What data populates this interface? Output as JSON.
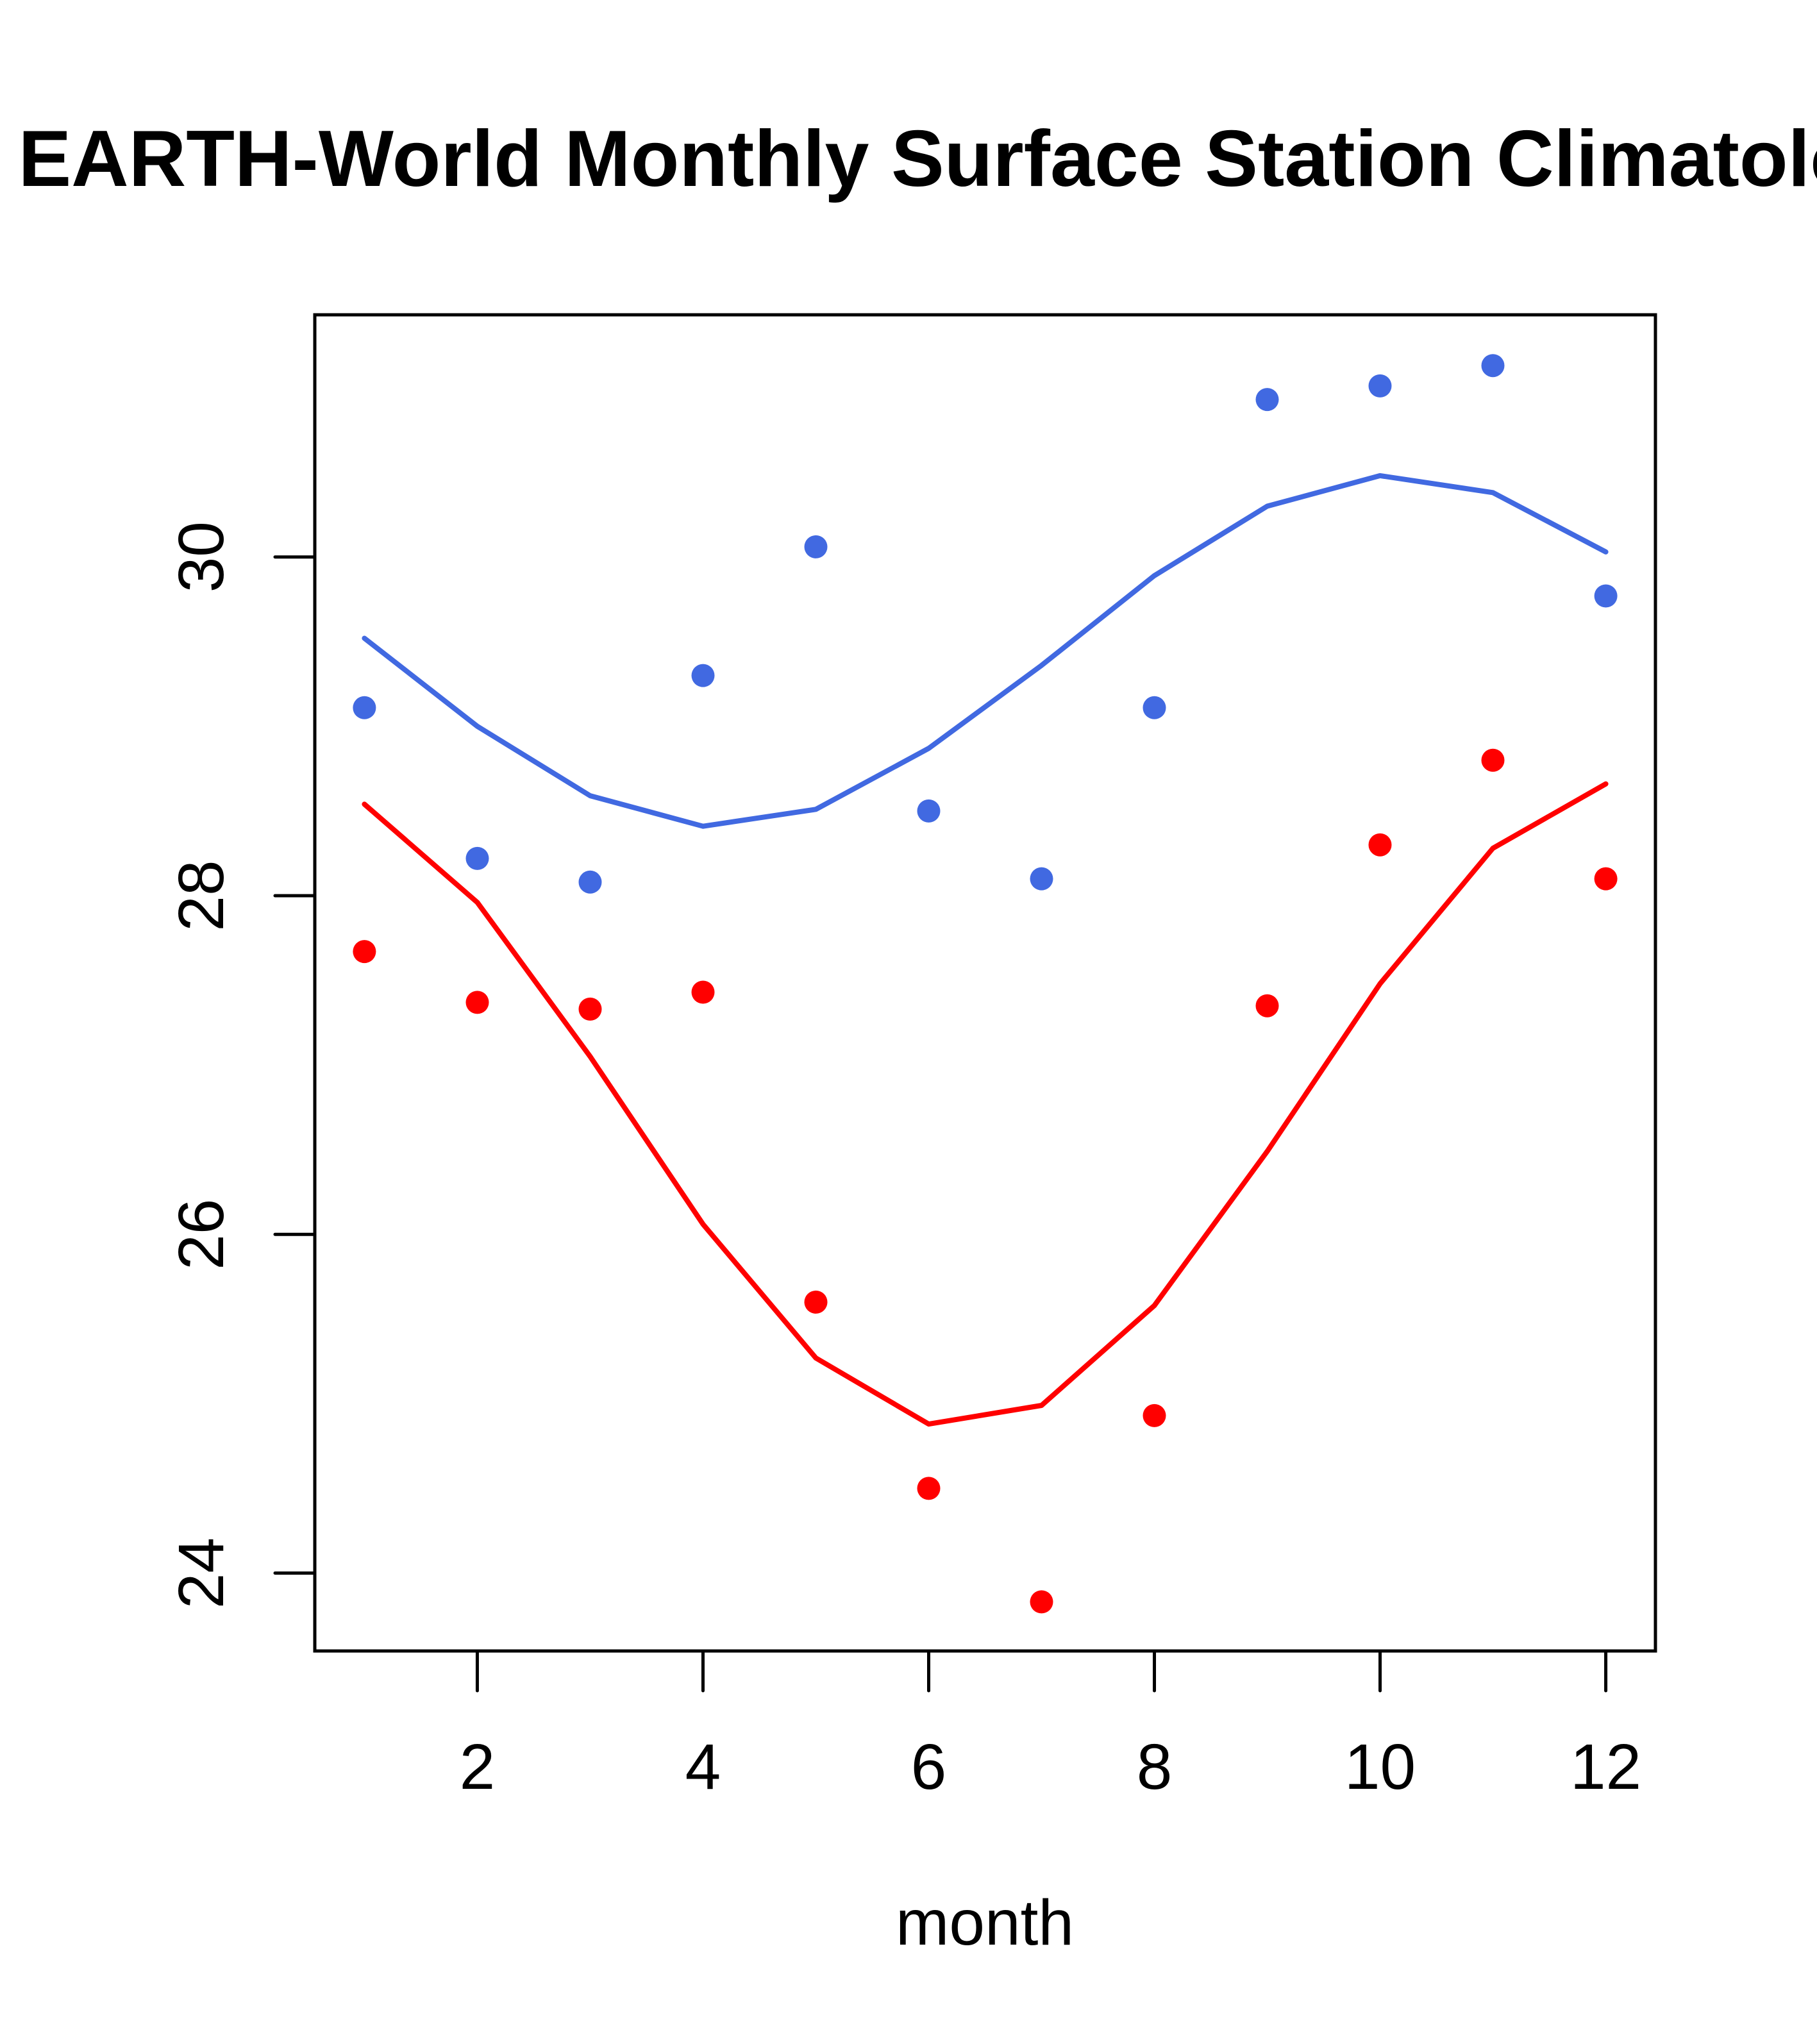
{
  "chart_data": {
    "type": "scatter",
    "title": "EARTH-World Monthly Surface Station Climatology",
    "xlabel": "month",
    "ylabel": "",
    "xlim": [
      0.56,
      12.44
    ],
    "ylim": [
      23.54,
      31.43
    ],
    "xticks": [
      2,
      4,
      6,
      8,
      10,
      12
    ],
    "xtick_labels": [
      "2",
      "4",
      "6",
      "8",
      "10",
      "12"
    ],
    "yticks": [
      24,
      26,
      28,
      30
    ],
    "ytick_labels": [
      "24",
      "26",
      "28",
      "30"
    ],
    "grid": false,
    "legend": null,
    "x": [
      1,
      2,
      3,
      4,
      5,
      6,
      7,
      8,
      9,
      10,
      11,
      12
    ],
    "series": [
      {
        "name": "blue-line",
        "kind": "line",
        "color": "#4169E1",
        "values": [
          29.52,
          29.0,
          28.59,
          28.41,
          28.51,
          28.87,
          29.36,
          29.89,
          30.3,
          30.48,
          30.38,
          30.03
        ]
      },
      {
        "name": "blue-points",
        "kind": "points",
        "color": "#4169E1",
        "values": [
          29.11,
          28.22,
          28.08,
          29.3,
          30.06,
          28.5,
          28.1,
          29.11,
          30.93,
          31.01,
          31.13,
          29.77
        ]
      },
      {
        "name": "red-line",
        "kind": "line",
        "color": "#FF0000",
        "values": [
          28.54,
          27.96,
          27.05,
          26.06,
          25.27,
          24.88,
          24.99,
          25.58,
          26.49,
          27.48,
          28.28,
          28.66
        ]
      },
      {
        "name": "red-points",
        "kind": "points",
        "color": "#FF0000",
        "values": [
          27.67,
          27.37,
          27.33,
          27.43,
          25.6,
          24.5,
          23.83,
          24.93,
          27.35,
          28.3,
          28.8,
          28.1
        ]
      }
    ]
  }
}
